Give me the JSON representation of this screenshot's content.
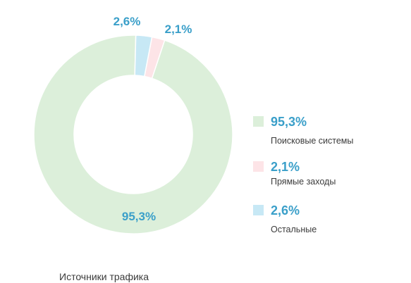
{
  "chart_data": {
    "type": "pie",
    "variant": "donut",
    "title": "Источники трафика",
    "slices": [
      {
        "label": "Поисковые системы",
        "value": 95.3,
        "display": "95,3%",
        "color": "#dcefda"
      },
      {
        "label": "Прямые заходы",
        "value": 2.1,
        "display": "2,1%",
        "color": "#fde4e7"
      },
      {
        "label": "Остальные",
        "value": 2.6,
        "display": "2,6%",
        "color": "#c7e8f5"
      }
    ],
    "legend_position": "right",
    "label_color": "#3a9fc9"
  }
}
